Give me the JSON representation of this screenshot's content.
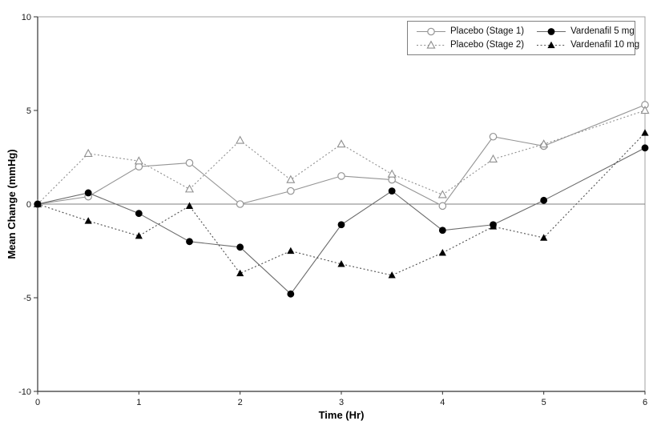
{
  "figure": {
    "background": "#ffffff",
    "axis_color": "#333333",
    "frame_color": "#a0a0a0",
    "zero_line_color": "#7f7f7f",
    "tick_label_color": "#1a1a1a"
  },
  "chart_data": {
    "type": "line",
    "title": "",
    "xlabel": "Time (Hr)",
    "ylabel": "Mean Change (mmHg)",
    "xlim": [
      0,
      6
    ],
    "ylim": [
      -10,
      10
    ],
    "x_ticks": [
      0,
      1,
      2,
      3,
      4,
      5,
      6
    ],
    "y_ticks": [
      10,
      5,
      0,
      -5,
      -10
    ],
    "grid": false,
    "zero_line": true,
    "legend_position": "top-right",
    "legend_columns": 2,
    "x": [
      0,
      0.5,
      1,
      1.5,
      2,
      2.5,
      3,
      3.5,
      4,
      4.5,
      5,
      6
    ],
    "series": [
      {
        "name": "Placebo (Stage 1)",
        "marker": "circle-open",
        "line": "solid",
        "color": "#949494",
        "values": [
          0,
          0.4,
          2.0,
          2.2,
          0.0,
          0.7,
          1.5,
          1.3,
          -0.1,
          3.6,
          3.1,
          5.3
        ]
      },
      {
        "name": "Placebo (Stage 2)",
        "marker": "triangle-open",
        "line": "dotted",
        "color": "#8f8f8f",
        "values": [
          0,
          2.7,
          2.3,
          0.8,
          3.4,
          1.3,
          3.2,
          1.6,
          0.5,
          2.4,
          3.2,
          5.0
        ]
      },
      {
        "name": "Vardenafil 5 mg",
        "marker": "circle-filled",
        "line": "solid",
        "color": "#6b6b6b",
        "values": [
          0,
          0.6,
          -0.5,
          -2.0,
          -2.3,
          -4.8,
          -1.1,
          0.7,
          -1.4,
          -1.1,
          0.2,
          3.0
        ]
      },
      {
        "name": "Vardenafil 10 mg",
        "marker": "triangle-filled",
        "line": "dotted",
        "color": "#4f4f4f",
        "values": [
          0,
          -0.9,
          -1.7,
          -0.1,
          -3.7,
          -2.5,
          -3.2,
          -3.8,
          -2.6,
          -1.2,
          -1.8,
          3.8
        ]
      }
    ]
  }
}
